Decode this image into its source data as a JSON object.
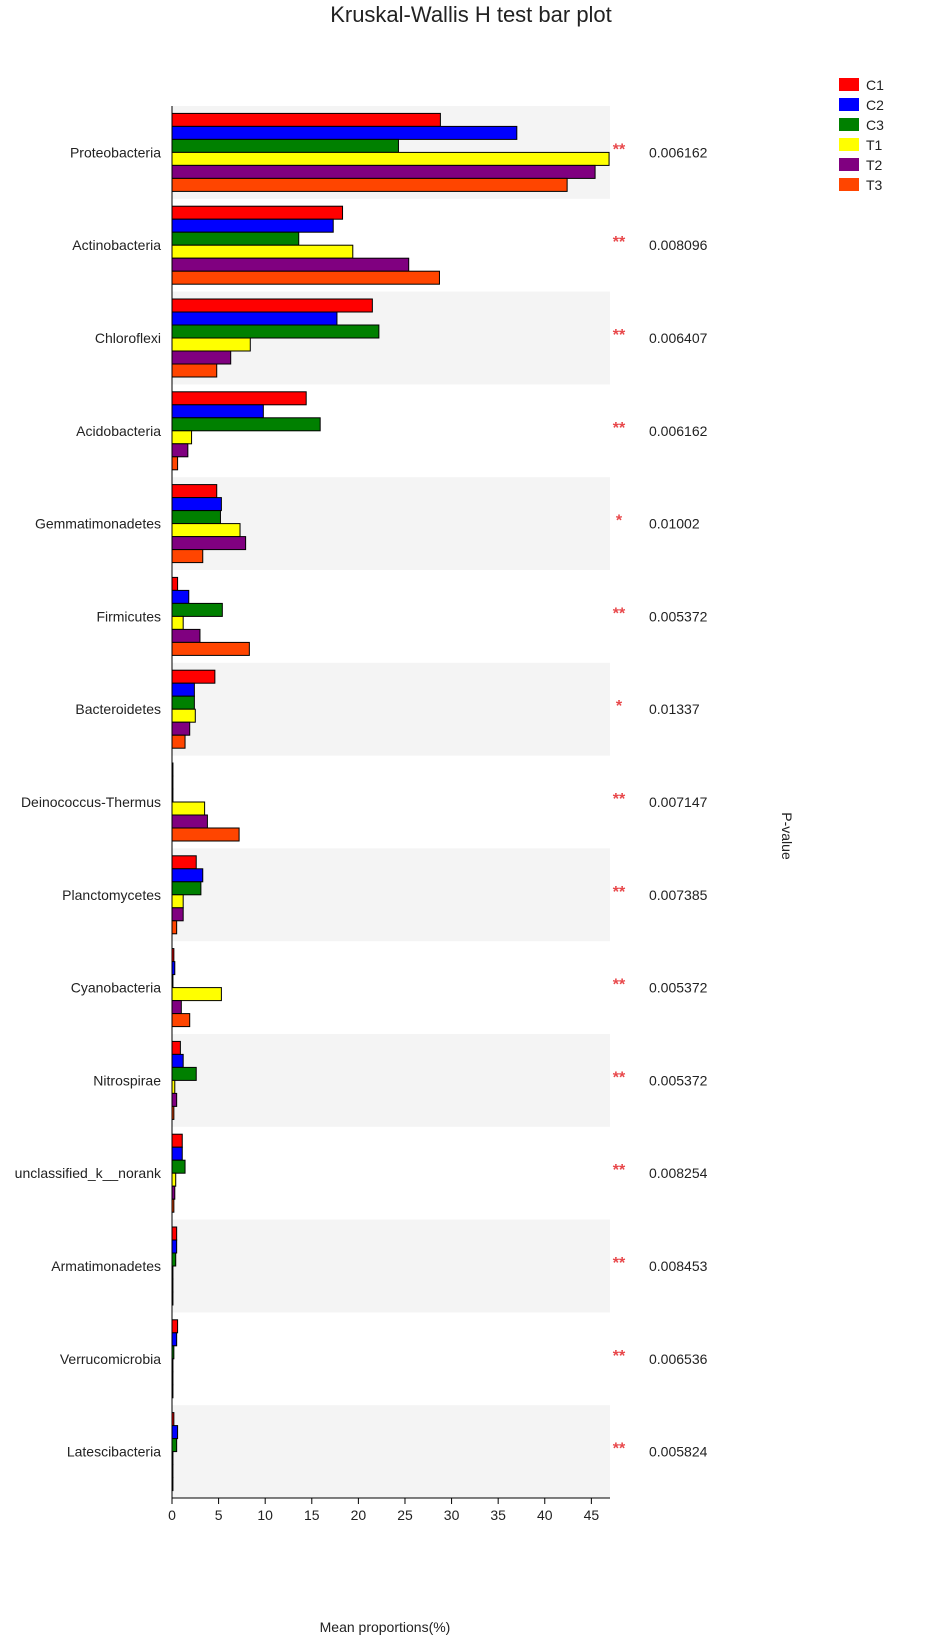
{
  "chart_data": {
    "type": "bar",
    "orientation": "horizontal",
    "title": "Kruskal-Wallis H test bar plot",
    "xlabel": "Mean proportions(%)",
    "right_axis_label": "P-value",
    "xlim": [
      0,
      47
    ],
    "xticks": [
      0,
      5,
      10,
      15,
      20,
      25,
      30,
      35,
      40,
      45
    ],
    "legend_position": "top-right",
    "colors": [
      "#ff0000",
      "#0000ff",
      "#008000",
      "#ffff00",
      "#800080",
      "#ff4500"
    ],
    "categories": [
      "Proteobacteria",
      "Actinobacteria",
      "Chloroflexi",
      "Acidobacteria",
      "Gemmatimonadetes",
      "Firmicutes",
      "Bacteroidetes",
      "Deinococcus-Thermus",
      "Planctomycetes",
      "Cyanobacteria",
      "Nitrospirae",
      "unclassified_k__norank",
      "Armatimonadetes",
      "Verrucomicrobia",
      "Latescibacteria"
    ],
    "series": [
      {
        "name": "C1",
        "values": [
          28.8,
          18.3,
          21.5,
          14.4,
          4.8,
          0.6,
          4.6,
          0.1,
          2.6,
          0.2,
          0.9,
          1.1,
          0.5,
          0.6,
          0.2
        ]
      },
      {
        "name": "C2",
        "values": [
          37.0,
          17.3,
          17.7,
          9.8,
          5.3,
          1.8,
          2.4,
          0.1,
          3.3,
          0.3,
          1.2,
          1.1,
          0.5,
          0.5,
          0.6
        ]
      },
      {
        "name": "C3",
        "values": [
          24.3,
          13.6,
          22.2,
          15.9,
          5.2,
          5.4,
          2.4,
          0.1,
          3.1,
          0.1,
          2.6,
          1.4,
          0.4,
          0.2,
          0.5
        ]
      },
      {
        "name": "T1",
        "values": [
          46.9,
          19.4,
          8.4,
          2.1,
          7.3,
          1.2,
          2.5,
          3.5,
          1.2,
          5.3,
          0.3,
          0.4,
          0.1,
          0.1,
          0.1
        ]
      },
      {
        "name": "T2",
        "values": [
          45.4,
          25.4,
          6.3,
          1.7,
          7.9,
          3.0,
          1.9,
          3.8,
          1.2,
          1.0,
          0.5,
          0.3,
          0.1,
          0.1,
          0.1
        ]
      },
      {
        "name": "T3",
        "values": [
          42.4,
          28.7,
          4.8,
          0.6,
          3.3,
          8.3,
          1.4,
          7.2,
          0.5,
          1.9,
          0.2,
          0.2,
          0.1,
          0.1,
          0.1
        ]
      }
    ],
    "significance": [
      "**",
      "**",
      "**",
      "**",
      "*",
      "**",
      "*",
      "**",
      "**",
      "**",
      "**",
      "**",
      "**",
      "**",
      "**"
    ],
    "p_values": [
      "0.006162",
      "0.008096",
      "0.006407",
      "0.006162",
      "0.01002",
      "0.005372",
      "0.01337",
      "0.007147",
      "0.007385",
      "0.005372",
      "0.005372",
      "0.008254",
      "0.008453",
      "0.006536",
      "0.005824"
    ]
  }
}
